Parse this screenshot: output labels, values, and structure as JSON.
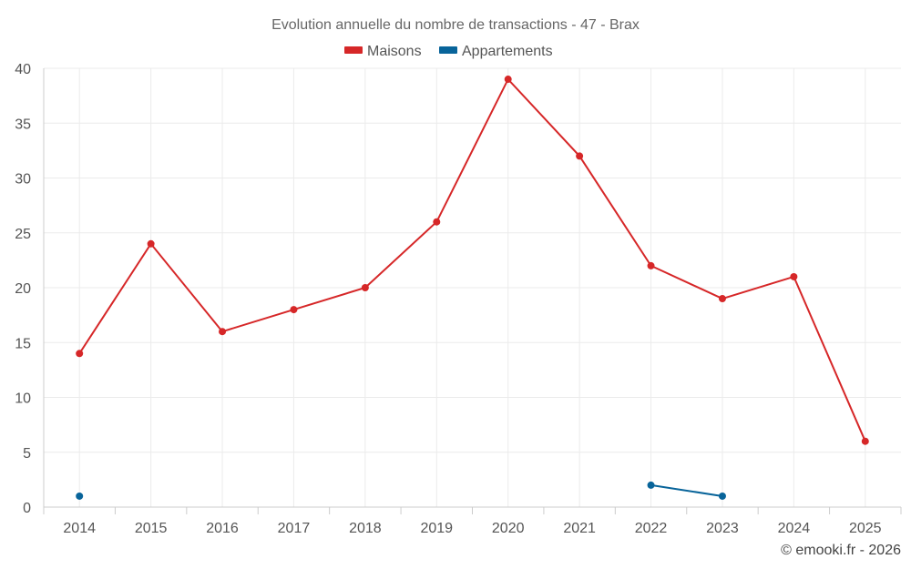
{
  "chart_data": {
    "type": "line",
    "title": "Evolution annuelle du nombre de transactions - 47 - Brax",
    "categories": [
      "2014",
      "2015",
      "2016",
      "2017",
      "2018",
      "2019",
      "2020",
      "2021",
      "2022",
      "2023",
      "2024",
      "2025"
    ],
    "ylim": [
      0,
      40
    ],
    "yticks": [
      0,
      5,
      10,
      15,
      20,
      25,
      30,
      35,
      40
    ],
    "grid": true,
    "legend_position": "top-center",
    "series": [
      {
        "name": "Maisons",
        "color": "#d62728",
        "values": [
          14,
          24,
          16,
          18,
          20,
          26,
          39,
          32,
          22,
          19,
          21,
          6
        ]
      },
      {
        "name": "Appartements",
        "color": "#08649a",
        "values": [
          1,
          null,
          null,
          null,
          null,
          null,
          null,
          null,
          2,
          1,
          null,
          null
        ]
      }
    ],
    "credit": "© emooki.fr - 2026"
  }
}
